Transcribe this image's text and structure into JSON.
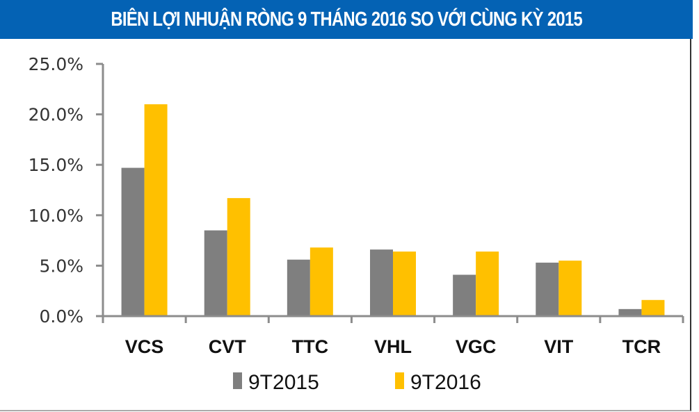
{
  "header": {
    "title": "BIÊN LỢI NHUẬN RÒNG 9 THÁNG 2016 SO VỚI CÙNG KỲ 2015",
    "background": "#0462b4"
  },
  "chart_data": {
    "type": "bar",
    "title": "BIÊN LỢI NHUẬN RÒNG 9 THÁNG 2016 SO VỚI CÙNG KỲ 2015",
    "xlabel": "",
    "ylabel": "",
    "categories": [
      "VCS",
      "CVT",
      "TTC",
      "VHL",
      "VGC",
      "VIT",
      "TCR"
    ],
    "series": [
      {
        "name": "9T2015",
        "color": "#7f7f7f",
        "values": [
          14.7,
          8.5,
          5.6,
          6.6,
          4.1,
          5.3,
          0.7
        ]
      },
      {
        "name": "9T2016",
        "color": "#ffc000",
        "values": [
          21.0,
          11.7,
          6.8,
          6.4,
          6.4,
          5.5,
          1.6
        ]
      }
    ],
    "ylim": [
      0,
      25
    ],
    "yticks": [
      "0.0%",
      "5.0%",
      "10.0%",
      "15.0%",
      "20.0%",
      "25.0%"
    ],
    "grid": false,
    "legend_position": "bottom"
  },
  "legend": {
    "items": [
      {
        "label": "9T2015",
        "color": "#7f7f7f"
      },
      {
        "label": "9T2016",
        "color": "#ffc000"
      }
    ]
  }
}
